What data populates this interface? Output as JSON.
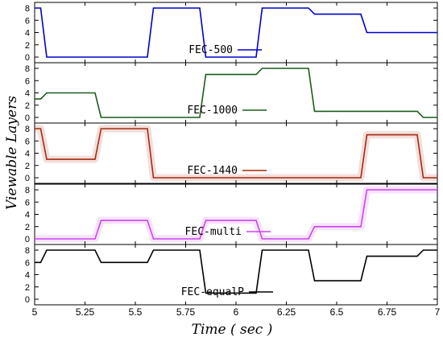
{
  "chart_data": {
    "type": "line",
    "xlabel": "Time ( sec )",
    "ylabel": "Viewable Layers",
    "xlim": [
      5,
      7
    ],
    "ylim": [
      0,
      8
    ],
    "x_ticks": [
      5,
      5.25,
      5.5,
      5.75,
      6,
      6.25,
      6.5,
      6.75,
      7
    ],
    "x_tick_labels": [
      "5",
      "5.25",
      "5.5",
      "5.75",
      "6",
      "6.25",
      "6.5",
      "6.75",
      "7"
    ],
    "y_ticks": [
      0,
      2,
      4,
      6,
      8
    ],
    "y_tick_labels": [
      "0",
      "2",
      "4",
      "6",
      "8"
    ],
    "legend_placement": "inside each panel, lower center",
    "panels": [
      {
        "name": "FEC-500",
        "color": "#0000cc",
        "shadow": false,
        "points": [
          [
            5,
            8
          ],
          [
            5.03,
            8
          ],
          [
            5.06,
            0
          ],
          [
            5.56,
            0
          ],
          [
            5.59,
            8
          ],
          [
            5.82,
            8
          ],
          [
            5.85,
            0
          ],
          [
            6.1,
            0
          ],
          [
            6.13,
            8
          ],
          [
            6.36,
            8
          ],
          [
            6.39,
            7
          ],
          [
            6.62,
            7
          ],
          [
            6.65,
            4
          ],
          [
            7,
            4
          ]
        ]
      },
      {
        "name": "FEC-1000",
        "color": "#1a5c1a",
        "shadow": false,
        "points": [
          [
            5,
            3
          ],
          [
            5.03,
            3
          ],
          [
            5.06,
            4
          ],
          [
            5.3,
            4
          ],
          [
            5.33,
            0
          ],
          [
            5.82,
            0
          ],
          [
            5.85,
            7
          ],
          [
            6.1,
            7
          ],
          [
            6.13,
            8
          ],
          [
            6.36,
            8
          ],
          [
            6.39,
            1
          ],
          [
            6.9,
            1
          ],
          [
            6.93,
            0
          ],
          [
            7,
            0
          ]
        ]
      },
      {
        "name": "FEC-1440",
        "color": "#a52a0f",
        "shadow": true,
        "points": [
          [
            5,
            8
          ],
          [
            5.03,
            8
          ],
          [
            5.06,
            3
          ],
          [
            5.3,
            3
          ],
          [
            5.33,
            8
          ],
          [
            5.56,
            8
          ],
          [
            5.59,
            0
          ],
          [
            6.62,
            0
          ],
          [
            6.65,
            7
          ],
          [
            6.9,
            7
          ],
          [
            6.93,
            0
          ],
          [
            7,
            0
          ]
        ]
      },
      {
        "name": "FEC-multi",
        "color": "#cc44ee",
        "shadow": true,
        "points": [
          [
            5,
            0
          ],
          [
            5.3,
            0
          ],
          [
            5.33,
            3
          ],
          [
            5.56,
            3
          ],
          [
            5.59,
            0
          ],
          [
            5.82,
            0
          ],
          [
            5.85,
            3
          ],
          [
            6.1,
            3
          ],
          [
            6.13,
            0
          ],
          [
            6.36,
            0
          ],
          [
            6.39,
            2
          ],
          [
            6.62,
            2
          ],
          [
            6.65,
            8
          ],
          [
            7,
            8
          ]
        ]
      },
      {
        "name": "FEC-equalP",
        "color": "#000000",
        "shadow": false,
        "points": [
          [
            5,
            6
          ],
          [
            5.03,
            6
          ],
          [
            5.06,
            8
          ],
          [
            5.3,
            8
          ],
          [
            5.33,
            6
          ],
          [
            5.56,
            6
          ],
          [
            5.59,
            8
          ],
          [
            5.82,
            8
          ],
          [
            5.85,
            1
          ],
          [
            6.1,
            1
          ],
          [
            6.13,
            8
          ],
          [
            6.36,
            8
          ],
          [
            6.39,
            3
          ],
          [
            6.62,
            3
          ],
          [
            6.65,
            7
          ],
          [
            6.9,
            7
          ],
          [
            6.93,
            8
          ],
          [
            7,
            8
          ]
        ]
      }
    ]
  }
}
